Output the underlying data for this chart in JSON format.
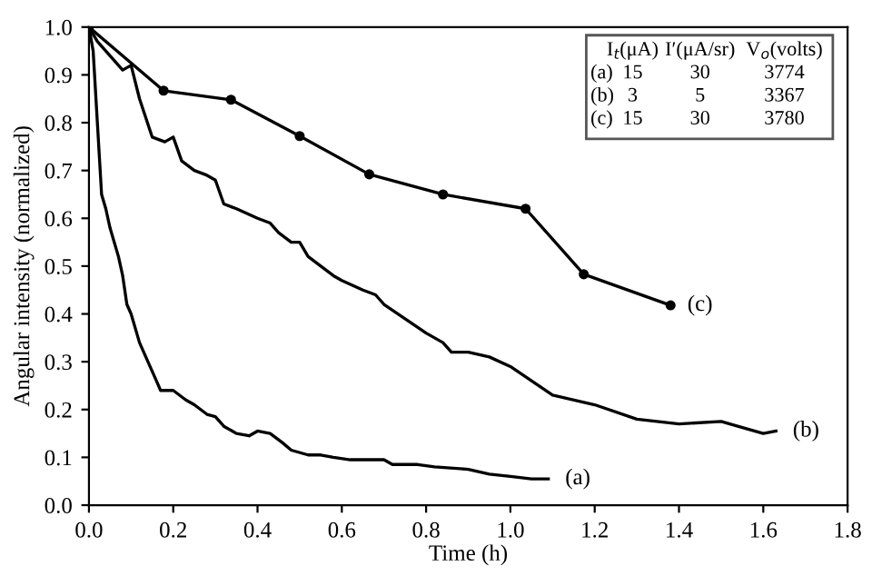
{
  "chart_data": {
    "type": "line",
    "xlabel": "Time (h)",
    "ylabel": "Angular intensity (normalized)",
    "xlim": [
      0,
      1.8
    ],
    "ylim": [
      0,
      1.0
    ],
    "xticks": [
      {
        "value": 0,
        "label": "0.0"
      },
      {
        "value": 0.2,
        "label": "0.2"
      },
      {
        "value": 0.4,
        "label": "0.4"
      },
      {
        "value": 0.6,
        "label": "0.6"
      },
      {
        "value": 0.8,
        "label": "0.8"
      },
      {
        "value": 1.0,
        "label": "1.0"
      },
      {
        "value": 1.2,
        "label": "1.2"
      },
      {
        "value": 1.4,
        "label": "1.4"
      },
      {
        "value": 1.6,
        "label": "1.6"
      },
      {
        "value": 1.8,
        "label": "1.8"
      }
    ],
    "yticks": [
      {
        "value": 0,
        "label": "0.0"
      },
      0.1,
      0.2,
      0.3,
      0.4,
      0.5,
      0.6,
      0.7,
      0.8,
      0.9,
      {
        "value": 1.0,
        "label": "1.0"
      }
    ],
    "grid": false,
    "legend": false,
    "line_style": "solid",
    "series": [
      {
        "name": "(a)",
        "color": "#000000",
        "marker": "none",
        "x": [
          0,
          0.01,
          0.02,
          0.03,
          0.04,
          0.05,
          0.07,
          0.08,
          0.09,
          0.1,
          0.12,
          0.14,
          0.16,
          0.17,
          0.2,
          0.23,
          0.25,
          0.28,
          0.3,
          0.32,
          0.35,
          0.38,
          0.4,
          0.43,
          0.46,
          0.48,
          0.52,
          0.55,
          0.58,
          0.62,
          0.7,
          0.72,
          0.78,
          0.82,
          0.9,
          0.95,
          1.0,
          1.05,
          1.09
        ],
        "values": [
          1.0,
          0.95,
          0.8,
          0.65,
          0.62,
          0.58,
          0.52,
          0.48,
          0.42,
          0.4,
          0.34,
          0.3,
          0.26,
          0.24,
          0.24,
          0.22,
          0.21,
          0.19,
          0.185,
          0.165,
          0.15,
          0.145,
          0.155,
          0.15,
          0.13,
          0.115,
          0.105,
          0.105,
          0.1,
          0.095,
          0.095,
          0.085,
          0.085,
          0.08,
          0.075,
          0.065,
          0.06,
          0.055,
          0.055
        ]
      },
      {
        "name": "(b)",
        "color": "#000000",
        "marker": "none",
        "x": [
          0,
          0.02,
          0.05,
          0.08,
          0.1,
          0.12,
          0.15,
          0.18,
          0.2,
          0.22,
          0.25,
          0.28,
          0.3,
          0.32,
          0.35,
          0.4,
          0.43,
          0.45,
          0.48,
          0.5,
          0.52,
          0.55,
          0.58,
          0.6,
          0.65,
          0.68,
          0.7,
          0.75,
          0.8,
          0.84,
          0.85,
          0.86,
          0.9,
          0.95,
          1.0,
          1.1,
          1.2,
          1.3,
          1.4,
          1.5,
          1.56,
          1.6,
          1.63
        ],
        "values": [
          1.0,
          0.97,
          0.94,
          0.91,
          0.92,
          0.85,
          0.77,
          0.76,
          0.77,
          0.72,
          0.7,
          0.69,
          0.68,
          0.63,
          0.62,
          0.6,
          0.59,
          0.57,
          0.55,
          0.55,
          0.52,
          0.5,
          0.48,
          0.47,
          0.45,
          0.44,
          0.42,
          0.39,
          0.36,
          0.34,
          0.33,
          0.32,
          0.32,
          0.31,
          0.29,
          0.23,
          0.21,
          0.18,
          0.17,
          0.175,
          0.16,
          0.15,
          0.155
        ]
      },
      {
        "name": "(c)",
        "color": "#000000",
        "marker": "circle",
        "x": [
          0,
          0.177,
          0.337,
          0.5,
          0.665,
          0.84,
          1.036,
          1.174,
          1.38
        ],
        "values": [
          1.0,
          0.867,
          0.848,
          0.772,
          0.692,
          0.65,
          0.62,
          0.483,
          0.418
        ]
      }
    ],
    "annotations": [
      "I$_{t}$(μA)",
      "I′(μA/sr)",
      "V$_{o}$(volts)",
      "(a)",
      "15",
      "30",
      "3774",
      "(b)",
      "3",
      "5",
      "3367",
      "(c)",
      "15",
      "30",
      "3780"
    ]
  }
}
